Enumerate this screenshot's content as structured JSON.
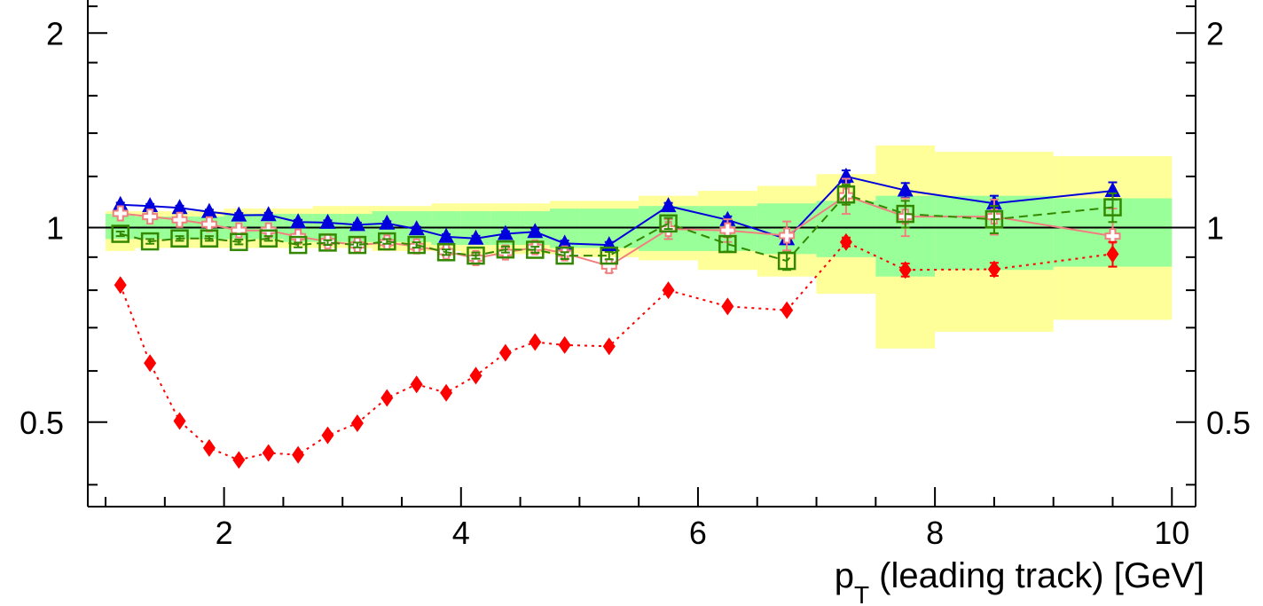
{
  "chart_data": {
    "type": "scatter",
    "title": "",
    "xlabel_main": "p",
    "xlabel_sub": "T",
    "xlabel_rest": " (leading track) [GeV]",
    "ylabel": "",
    "xlim": [
      0.85,
      10.2
    ],
    "ylim": [
      0.37,
      2.25
    ],
    "log_y": true,
    "x_ticks": [
      {
        "value": 2,
        "label": "2"
      },
      {
        "value": 4,
        "label": "4"
      },
      {
        "value": 6,
        "label": "6"
      },
      {
        "value": 8,
        "label": "8"
      },
      {
        "value": 10,
        "label": "10"
      }
    ],
    "y_ticks": [
      {
        "value": 0.5,
        "label": "0.5"
      },
      {
        "value": 1,
        "label": "1"
      },
      {
        "value": 2,
        "label": "2"
      }
    ],
    "reference_line": 1,
    "bands": {
      "bins": [
        [
          1.0,
          1.25,
          1.06,
          0.92,
          1.05,
          0.96
        ],
        [
          1.25,
          1.5,
          1.06,
          0.93,
          1.04,
          0.96
        ],
        [
          1.5,
          1.75,
          1.06,
          0.93,
          1.04,
          0.96
        ],
        [
          1.75,
          2.0,
          1.06,
          0.93,
          1.04,
          0.96
        ],
        [
          2.0,
          2.25,
          1.07,
          0.93,
          1.05,
          0.96
        ],
        [
          2.25,
          2.5,
          1.07,
          0.93,
          1.05,
          0.96
        ],
        [
          2.5,
          2.75,
          1.07,
          0.93,
          1.05,
          0.95
        ],
        [
          2.75,
          3.0,
          1.08,
          0.93,
          1.05,
          0.95
        ],
        [
          3.0,
          3.25,
          1.08,
          0.93,
          1.05,
          0.95
        ],
        [
          3.25,
          3.5,
          1.08,
          0.92,
          1.06,
          0.95
        ],
        [
          3.5,
          3.75,
          1.08,
          0.92,
          1.06,
          0.95
        ],
        [
          3.75,
          4.0,
          1.09,
          0.92,
          1.06,
          0.94
        ],
        [
          4.0,
          4.25,
          1.09,
          0.91,
          1.06,
          0.94
        ],
        [
          4.25,
          4.5,
          1.09,
          0.91,
          1.06,
          0.94
        ],
        [
          4.5,
          4.75,
          1.09,
          0.91,
          1.06,
          0.94
        ],
        [
          4.75,
          5.0,
          1.1,
          0.91,
          1.07,
          0.93
        ],
        [
          5.0,
          5.5,
          1.1,
          0.9,
          1.07,
          0.93
        ],
        [
          5.5,
          6.0,
          1.12,
          0.89,
          1.08,
          0.92
        ],
        [
          6.0,
          6.5,
          1.14,
          0.86,
          1.08,
          0.92
        ],
        [
          6.5,
          7.0,
          1.16,
          0.84,
          1.09,
          0.91
        ],
        [
          7.0,
          7.5,
          1.21,
          0.79,
          1.1,
          0.9
        ],
        [
          7.5,
          8.0,
          1.34,
          0.65,
          1.12,
          0.84
        ],
        [
          8.0,
          9.0,
          1.31,
          0.69,
          1.12,
          0.86
        ],
        [
          9.0,
          10.0,
          1.29,
          0.72,
          1.11,
          0.87
        ]
      ],
      "outer_color": "#ffff99",
      "inner_color": "#99ff99"
    },
    "series": [
      {
        "marker": "triangle",
        "color": "#0000dd",
        "line": "solid",
        "x": [
          1.125,
          1.375,
          1.625,
          1.875,
          2.125,
          2.375,
          2.625,
          2.875,
          3.125,
          3.375,
          3.625,
          3.875,
          4.125,
          4.375,
          4.625,
          4.875,
          5.25,
          5.75,
          6.25,
          6.75,
          7.25,
          7.75,
          8.5,
          9.5
        ],
        "y": [
          1.085,
          1.08,
          1.073,
          1.058,
          1.045,
          1.046,
          1.02,
          1.018,
          1.01,
          1.015,
          0.995,
          0.968,
          0.962,
          0.978,
          0.985,
          0.945,
          0.94,
          1.08,
          1.028,
          0.96,
          1.2,
          1.142,
          1.09,
          1.14
        ],
        "err": [
          0.008,
          0.008,
          0.008,
          0.008,
          0.008,
          0.008,
          0.008,
          0.008,
          0.008,
          0.008,
          0.008,
          0.009,
          0.009,
          0.009,
          0.01,
          0.01,
          0.01,
          0.012,
          0.013,
          0.016,
          0.026,
          0.03,
          0.03,
          0.035
        ]
      },
      {
        "marker": "open-cross",
        "color": "#f08080",
        "line": "solid",
        "x": [
          1.125,
          1.375,
          1.625,
          1.875,
          2.125,
          2.375,
          2.625,
          2.875,
          3.125,
          3.375,
          3.625,
          3.875,
          4.125,
          4.375,
          4.625,
          4.875,
          5.25,
          5.75,
          6.25,
          6.75,
          7.25,
          7.75,
          8.5,
          9.5
        ],
        "y": [
          1.052,
          1.04,
          1.028,
          1.012,
          0.99,
          0.99,
          0.968,
          0.952,
          0.94,
          0.948,
          0.935,
          0.918,
          0.897,
          0.915,
          0.932,
          0.912,
          0.872,
          0.995,
          0.99,
          0.972,
          1.12,
          1.04,
          1.04,
          0.97
        ],
        "err": [
          0.01,
          0.01,
          0.01,
          0.01,
          0.01,
          0.011,
          0.011,
          0.011,
          0.012,
          0.012,
          0.012,
          0.013,
          0.014,
          0.015,
          0.015,
          0.016,
          0.02,
          0.035,
          0.04,
          0.05,
          0.07,
          0.07,
          0.065,
          0.1
        ]
      },
      {
        "marker": "open-square",
        "color": "#338800",
        "line": "dashed",
        "x": [
          1.125,
          1.375,
          1.625,
          1.875,
          2.125,
          2.375,
          2.625,
          2.875,
          3.125,
          3.375,
          3.625,
          3.875,
          4.125,
          4.375,
          4.625,
          4.875,
          5.25,
          5.75,
          6.25,
          6.75,
          7.25,
          7.75,
          8.5,
          9.5
        ],
        "y": [
          0.978,
          0.952,
          0.962,
          0.962,
          0.95,
          0.962,
          0.94,
          0.948,
          0.94,
          0.952,
          0.94,
          0.916,
          0.905,
          0.925,
          0.924,
          0.905,
          0.905,
          1.015,
          0.943,
          0.888,
          1.125,
          1.05,
          1.03,
          1.075
        ],
        "err": [
          0.008,
          0.008,
          0.008,
          0.008,
          0.008,
          0.008,
          0.008,
          0.008,
          0.008,
          0.008,
          0.009,
          0.009,
          0.01,
          0.01,
          0.01,
          0.011,
          0.012,
          0.02,
          0.025,
          0.028,
          0.04,
          0.05,
          0.05,
          0.055
        ]
      },
      {
        "marker": "diamond",
        "color": "#ff0000",
        "line": "dotted",
        "x": [
          1.125,
          1.375,
          1.625,
          1.875,
          2.125,
          2.375,
          2.625,
          2.875,
          3.125,
          3.375,
          3.625,
          3.875,
          4.125,
          4.375,
          4.625,
          4.875,
          5.25,
          5.75,
          6.25,
          6.75,
          7.25,
          7.75,
          8.5,
          9.5
        ],
        "y": [
          0.815,
          0.617,
          0.502,
          0.456,
          0.437,
          0.448,
          0.445,
          0.477,
          0.498,
          0.545,
          0.572,
          0.555,
          0.59,
          0.64,
          0.665,
          0.658,
          0.655,
          0.8,
          0.755,
          0.745,
          0.95,
          0.86,
          0.862,
          0.91
        ],
        "err": [
          0,
          0,
          0,
          0,
          0,
          0,
          0,
          0,
          0,
          0,
          0,
          0,
          0,
          0,
          0,
          0,
          0,
          0,
          0,
          0,
          0.015,
          0.02,
          0.02,
          0.04
        ]
      }
    ]
  }
}
